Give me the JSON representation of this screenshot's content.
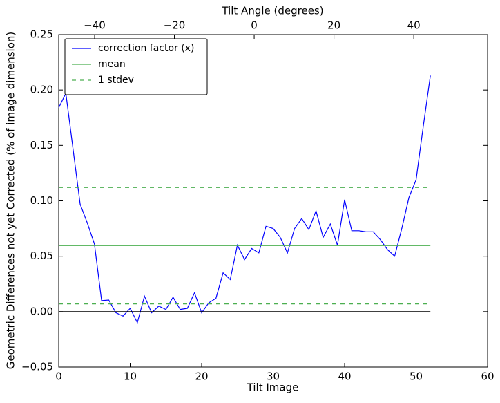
{
  "chart_data": {
    "type": "line",
    "xlabel": "Tilt Image",
    "x2label": "Tilt Angle (degrees)",
    "ylabel": "Geometric Differences not yet Corrected (% of image dimension)",
    "x": [
      0,
      1,
      2,
      3,
      4,
      5,
      6,
      7,
      8,
      9,
      10,
      11,
      12,
      13,
      14,
      15,
      16,
      17,
      18,
      19,
      20,
      21,
      22,
      23,
      24,
      25,
      26,
      27,
      28,
      29,
      30,
      31,
      32,
      33,
      34,
      35,
      36,
      37,
      38,
      39,
      40,
      41,
      42,
      43,
      44,
      45,
      46,
      47,
      48,
      49,
      50,
      51,
      52
    ],
    "series": [
      {
        "name": "correction factor (x)",
        "color": "#0000ff",
        "values": [
          0.184,
          0.197,
          0.147,
          0.097,
          0.08,
          0.061,
          0.01,
          0.0105,
          -0.001,
          -0.004,
          0.003,
          -0.01,
          0.014,
          -0.001,
          0.005,
          0.002,
          0.013,
          0.002,
          0.003,
          0.017,
          -0.001,
          0.008,
          0.012,
          0.035,
          0.029,
          0.06,
          0.047,
          0.057,
          0.053,
          0.077,
          0.075,
          0.067,
          0.053,
          0.075,
          0.084,
          0.074,
          0.091,
          0.067,
          0.079,
          0.06,
          0.101,
          0.073,
          0.073,
          0.072,
          0.072,
          0.065,
          0.056,
          0.05,
          0.075,
          0.103,
          0.119,
          0.167,
          0.213
        ]
      },
      {
        "name": "mean",
        "color": "#4caf50",
        "x": [
          0,
          52
        ],
        "values": [
          0.0596,
          0.0596
        ]
      },
      {
        "name": "1 stdev",
        "color": "#4caf50",
        "dashed": true,
        "x": [
          0,
          52
        ],
        "values": [
          0.112,
          0.112
        ]
      },
      {
        "color": "#4caf50",
        "dashed": true,
        "x": [
          0,
          52
        ],
        "values": [
          0.007,
          0.007
        ]
      },
      {
        "color": "#000000",
        "x": [
          0,
          52
        ],
        "values": [
          0,
          0
        ]
      }
    ],
    "xlim": [
      0,
      60
    ],
    "xticks": [
      0,
      10,
      20,
      30,
      40,
      50,
      60
    ],
    "x2lim": [
      -49,
      58.5
    ],
    "x2ticks": [
      {
        "value": -40,
        "label": "−40"
      },
      {
        "value": -20,
        "label": "−20"
      },
      0,
      20,
      40
    ],
    "ylim": [
      -0.05,
      0.25
    ],
    "yticks": [
      {
        "value": -0.05,
        "label": "−0.05"
      },
      {
        "value": 0,
        "label": "0.00"
      },
      0.05,
      {
        "value": 0.1,
        "label": "0.10"
      },
      0.15,
      {
        "value": 0.2,
        "label": "0.20"
      },
      0.25
    ],
    "legend": "upper left"
  }
}
